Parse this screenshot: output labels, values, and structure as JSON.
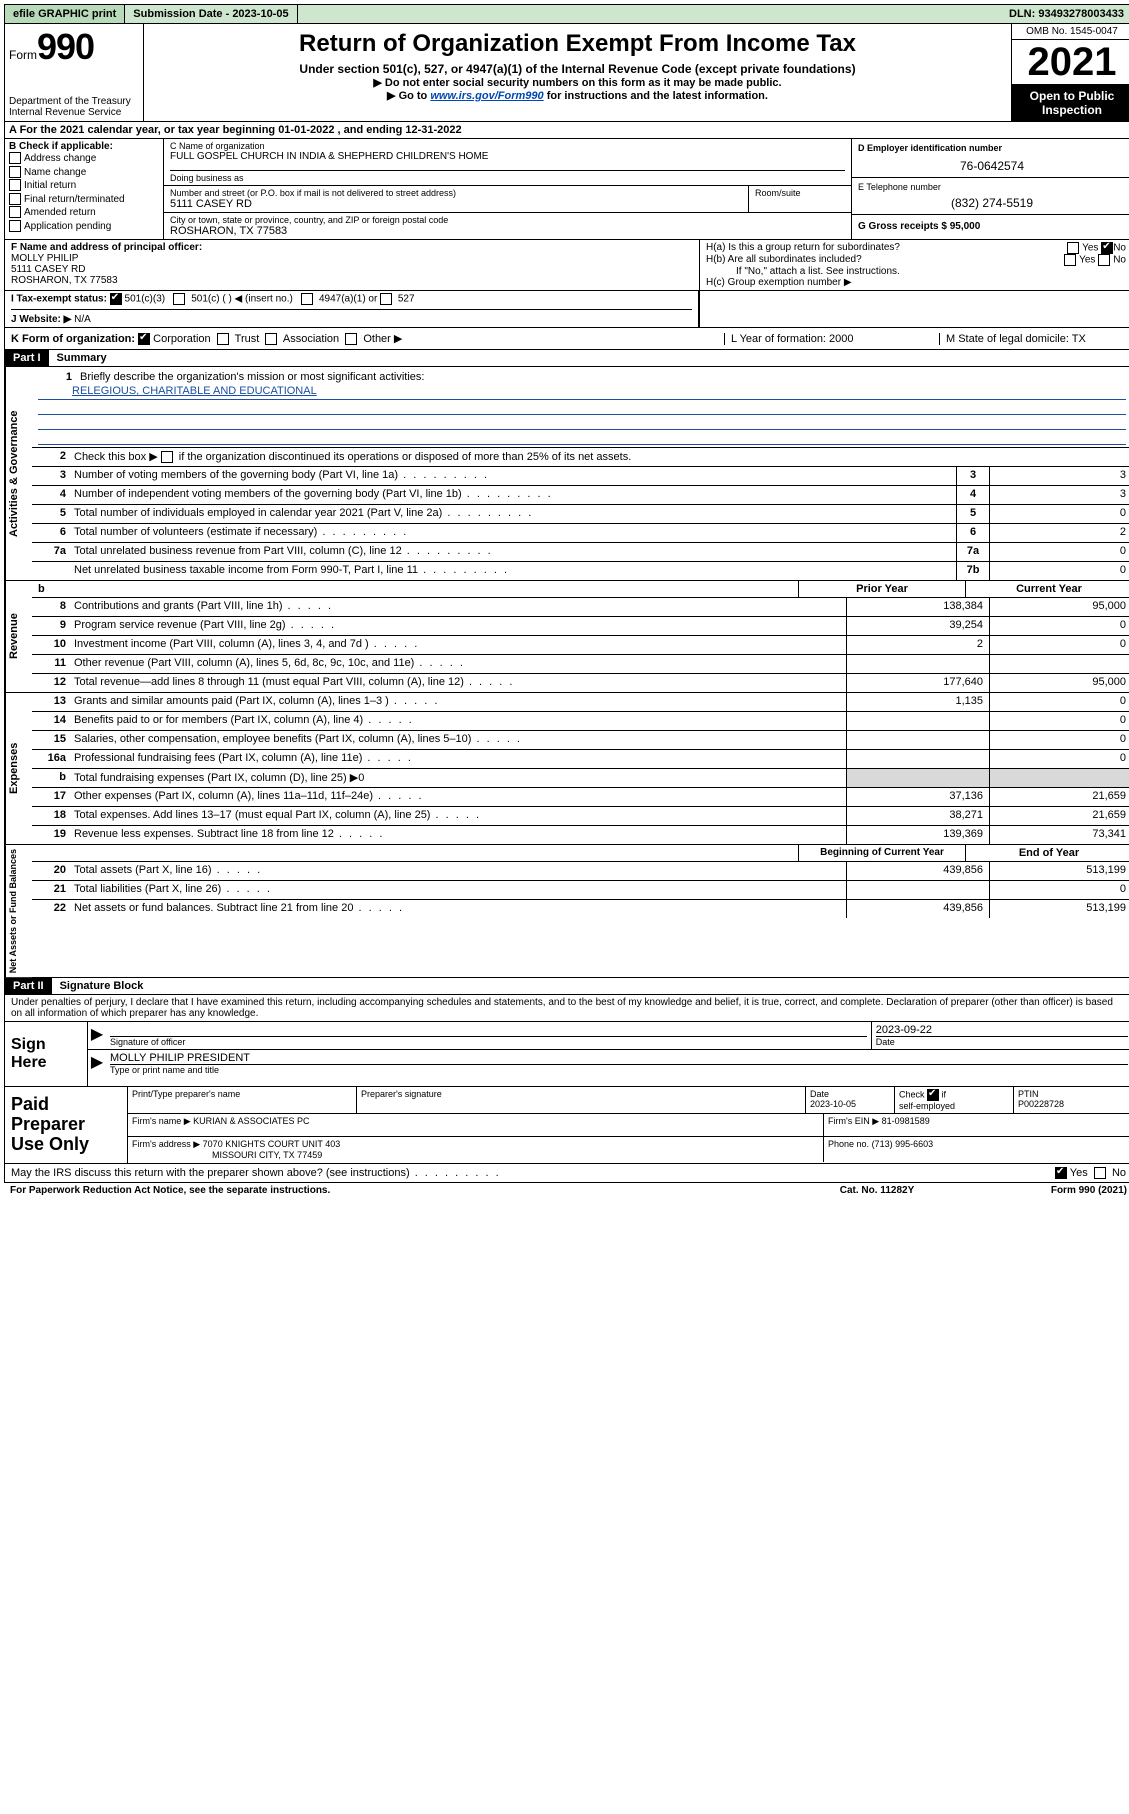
{
  "colors": {
    "topbar_bg": "#cde6cd",
    "link": "#0047b3",
    "underline": "#1a4fa3",
    "shade": "#d9d9d9"
  },
  "topbar": {
    "efile": "efile GRAPHIC print",
    "sub_label": "Submission Date - 2023-10-05",
    "dln": "DLN: 93493278003433"
  },
  "header": {
    "form_word": "Form",
    "form_num": "990",
    "dept": "Department of the Treasury",
    "irs": "Internal Revenue Service",
    "title": "Return of Organization Exempt From Income Tax",
    "sub1": "Under section 501(c), 527, or 4947(a)(1) of the Internal Revenue Code (except private foundations)",
    "sub2": "▶ Do not enter social security numbers on this form as it may be made public.",
    "sub3_pre": "▶ Go to ",
    "sub3_link": "www.irs.gov/Form990",
    "sub3_post": " for instructions and the latest information.",
    "omb": "OMB No. 1545-0047",
    "year": "2021",
    "open": "Open to Public Inspection"
  },
  "row_a": "A  For the 2021 calendar year, or tax year beginning 01-01-2022    , and ending 12-31-2022",
  "box_b": {
    "intro": "B Check if applicable:",
    "items": [
      "Address change",
      "Name change",
      "Initial return",
      "Final return/terminated",
      "Amended return",
      "Application pending"
    ]
  },
  "box_c": {
    "name_lbl": "C Name of organization",
    "name": "FULL GOSPEL CHURCH IN INDIA & SHEPHERD CHILDREN'S HOME",
    "dba_lbl": "Doing business as",
    "street_lbl": "Number and street (or P.O. box if mail is not delivered to street address)",
    "room_lbl": "Room/suite",
    "street": "5111 CASEY RD",
    "city_lbl": "City or town, state or province, country, and ZIP or foreign postal code",
    "city": "ROSHARON, TX  77583"
  },
  "box_d": {
    "lbl": "D Employer identification number",
    "val": "76-0642574"
  },
  "box_e": {
    "lbl": "E Telephone number",
    "val": "(832) 274-5519"
  },
  "box_g": {
    "lbl": "G Gross receipts $ 95,000"
  },
  "box_f": {
    "lbl": "F Name and address of principal officer:",
    "l1": "MOLLY PHILIP",
    "l2": "5111 CASEY RD",
    "l3": "ROSHARON, TX  77583"
  },
  "box_h": {
    "ha": "H(a)  Is this a group return for subordinates?",
    "hb": "H(b)  Are all subordinates included?",
    "hb_note": "If \"No,\" attach a list. See instructions.",
    "hc": "H(c)  Group exemption number ▶"
  },
  "row_i": {
    "lbl": "I    Tax-exempt status:",
    "o1": "501(c)(3)",
    "o2": "501(c) (   ) ◀ (insert no.)",
    "o3": "4947(a)(1) or",
    "o4": "527"
  },
  "row_j": {
    "lbl": "J    Website: ▶",
    "val": "N/A"
  },
  "row_k": {
    "lbl": "K Form of organization:",
    "o1": "Corporation",
    "o2": "Trust",
    "o3": "Association",
    "o4": "Other ▶"
  },
  "row_l": "L Year of formation: 2000",
  "row_m": "M State of legal domicile: TX",
  "part1": {
    "hdr": "Part I",
    "title": "Summary"
  },
  "summary": {
    "l1_text": "Briefly describe the organization's mission or most significant activities:",
    "l1_val": "RELEGIOUS, CHARITABLE AND EDUCATIONAL",
    "l2_text": "Check this box ▶       if the organization discontinued its operations or disposed of more than 25% of its net assets.",
    "rows_small": [
      {
        "n": "3",
        "t": "Number of voting members of the governing body (Part VI, line 1a)",
        "box": "3",
        "v": "3"
      },
      {
        "n": "4",
        "t": "Number of independent voting members of the governing body (Part VI, line 1b)",
        "box": "4",
        "v": "3"
      },
      {
        "n": "5",
        "t": "Total number of individuals employed in calendar year 2021 (Part V, line 2a)",
        "box": "5",
        "v": "0"
      },
      {
        "n": "6",
        "t": "Total number of volunteers (estimate if necessary)",
        "box": "6",
        "v": "2"
      },
      {
        "n": "7a",
        "t": "Total unrelated business revenue from Part VIII, column (C), line 12",
        "box": "7a",
        "v": "0"
      },
      {
        "n": "",
        "t": "Net unrelated business taxable income from Form 990-T, Part I, line 11",
        "box": "7b",
        "v": "0"
      }
    ],
    "hdr_prior": "Prior Year",
    "hdr_curr": "Current Year"
  },
  "revenue": [
    {
      "n": "8",
      "t": "Contributions and grants (Part VIII, line 1h)",
      "p": "138,384",
      "c": "95,000"
    },
    {
      "n": "9",
      "t": "Program service revenue (Part VIII, line 2g)",
      "p": "39,254",
      "c": "0"
    },
    {
      "n": "10",
      "t": "Investment income (Part VIII, column (A), lines 3, 4, and 7d )",
      "p": "2",
      "c": "0"
    },
    {
      "n": "11",
      "t": "Other revenue (Part VIII, column (A), lines 5, 6d, 8c, 9c, 10c, and 11e)",
      "p": "",
      "c": ""
    },
    {
      "n": "12",
      "t": "Total revenue—add lines 8 through 11 (must equal Part VIII, column (A), line 12)",
      "p": "177,640",
      "c": "95,000"
    }
  ],
  "expenses": [
    {
      "n": "13",
      "t": "Grants and similar amounts paid (Part IX, column (A), lines 1–3 )",
      "p": "1,135",
      "c": "0"
    },
    {
      "n": "14",
      "t": "Benefits paid to or for members (Part IX, column (A), line 4)",
      "p": "",
      "c": "0"
    },
    {
      "n": "15",
      "t": "Salaries, other compensation, employee benefits (Part IX, column (A), lines 5–10)",
      "p": "",
      "c": "0"
    },
    {
      "n": "16a",
      "t": "Professional fundraising fees (Part IX, column (A), line 11e)",
      "p": "",
      "c": "0"
    },
    {
      "n": "b",
      "t": "Total fundraising expenses (Part IX, column (D), line 25) ▶0",
      "p": "SHADE",
      "c": "SHADE"
    },
    {
      "n": "17",
      "t": "Other expenses (Part IX, column (A), lines 11a–11d, 11f–24e)",
      "p": "37,136",
      "c": "21,659"
    },
    {
      "n": "18",
      "t": "Total expenses. Add lines 13–17 (must equal Part IX, column (A), line 25)",
      "p": "38,271",
      "c": "21,659"
    },
    {
      "n": "19",
      "t": "Revenue less expenses. Subtract line 18 from line 12",
      "p": "139,369",
      "c": "73,341"
    }
  ],
  "netassets": {
    "hdr_beg": "Beginning of Current Year",
    "hdr_end": "End of Year",
    "rows": [
      {
        "n": "20",
        "t": "Total assets (Part X, line 16)",
        "p": "439,856",
        "c": "513,199"
      },
      {
        "n": "21",
        "t": "Total liabilities (Part X, line 26)",
        "p": "",
        "c": "0"
      },
      {
        "n": "22",
        "t": "Net assets or fund balances. Subtract line 21 from line 20",
        "p": "439,856",
        "c": "513,199"
      }
    ]
  },
  "part2": {
    "hdr": "Part II",
    "title": "Signature Block"
  },
  "sig_intro": "Under penalties of perjury, I declare that I have examined this return, including accompanying schedules and statements, and to the best of my knowledge and belief, it is true, correct, and complete. Declaration of preparer (other than officer) is based on all information of which preparer has any knowledge.",
  "sign": {
    "lbl": "Sign Here",
    "sig_of_officer": "Signature of officer",
    "date_lbl": "Date",
    "date": "2023-09-22",
    "name": "MOLLY PHILIP  PRESIDENT",
    "name_lbl": "Type or print name and title"
  },
  "prep": {
    "lbl": "Paid Preparer Use Only",
    "h1": "Print/Type preparer's name",
    "h2": "Preparer's signature",
    "h3": "Date",
    "date": "2023-10-05",
    "h4": "Check        if self-employed",
    "h5": "PTIN",
    "ptin": "P00228728",
    "firm_name_lbl": "Firm's name     ▶",
    "firm_name": "KURIAN & ASSOCIATES PC",
    "firm_ein_lbl": "Firm's EIN ▶",
    "firm_ein": "81-0981589",
    "firm_addr_lbl": "Firm's address ▶",
    "firm_addr1": "7070 KNIGHTS COURT UNIT 403",
    "firm_addr2": "MISSOURI CITY, TX  77459",
    "phone_lbl": "Phone no.",
    "phone": "(713) 995-6603"
  },
  "irs_discuss": "May the IRS discuss this return with the preparer shown above? (see instructions)",
  "footer": {
    "l": "For Paperwork Reduction Act Notice, see the separate instructions.",
    "c": "Cat. No. 11282Y",
    "r": "Form 990 (2021)"
  },
  "labels": {
    "yes": "Yes",
    "no": "No",
    "side_gov": "Activities & Governance",
    "side_rev": "Revenue",
    "side_exp": "Expenses",
    "side_net": "Net Assets or Fund Balances"
  }
}
